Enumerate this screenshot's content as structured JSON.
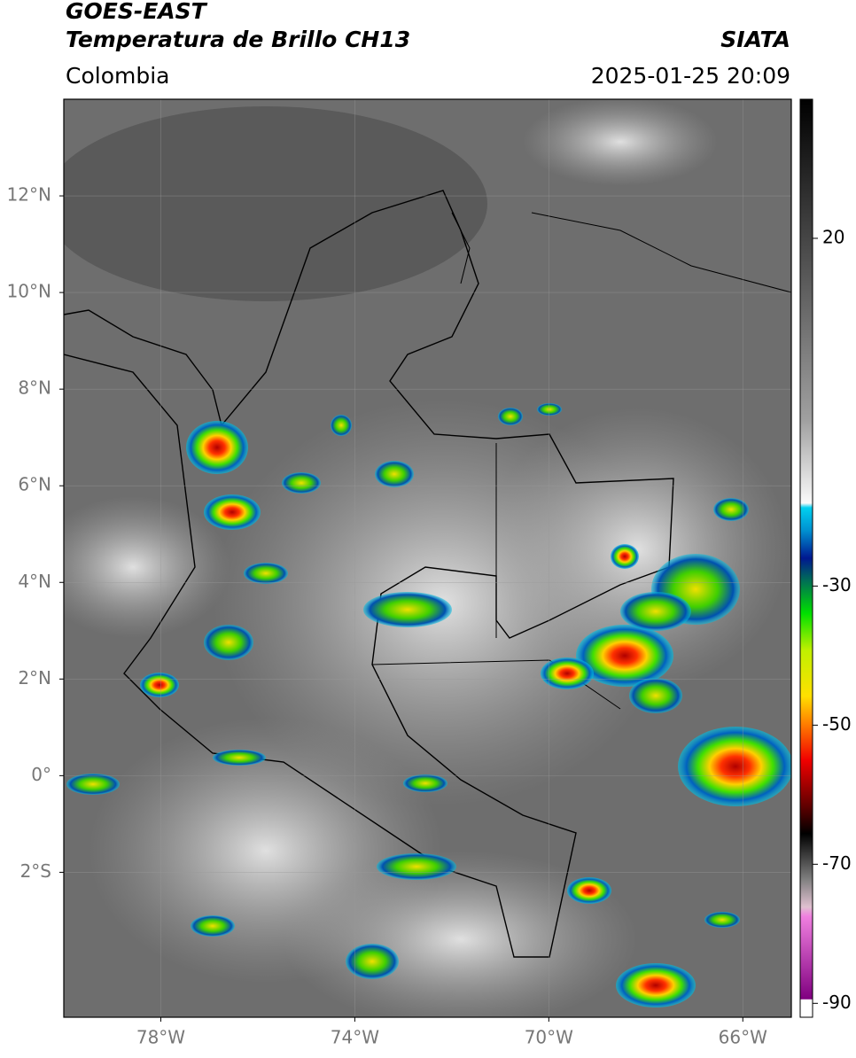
{
  "map": {
    "title": "GOES-EAST",
    "subtitle": "Temperatura de Brillo CH13",
    "region": "Colombia",
    "source": "SIATA",
    "datetime": "2025-01-25 20:09",
    "xlim": [
      -80,
      -65
    ],
    "ylim": [
      -5,
      14
    ],
    "xticks": [
      {
        "value": -78,
        "label": "78°W"
      },
      {
        "value": -74,
        "label": "74°W"
      },
      {
        "value": -70,
        "label": "70°W"
      },
      {
        "value": -66,
        "label": "66°W"
      }
    ],
    "yticks": [
      {
        "value": 12,
        "label": "12°N"
      },
      {
        "value": 10,
        "label": "10°N"
      },
      {
        "value": 8,
        "label": "8°N"
      },
      {
        "value": 6,
        "label": "6°N"
      },
      {
        "value": 4,
        "label": "4°N"
      },
      {
        "value": 2,
        "label": "2°N"
      },
      {
        "value": 0,
        "label": "0°"
      },
      {
        "value": -2,
        "label": "2°S"
      }
    ],
    "grid": true,
    "colorbar": {
      "lim": [
        -92,
        40
      ],
      "ticks": [
        20,
        -30,
        -50,
        -70,
        -90
      ]
    }
  }
}
